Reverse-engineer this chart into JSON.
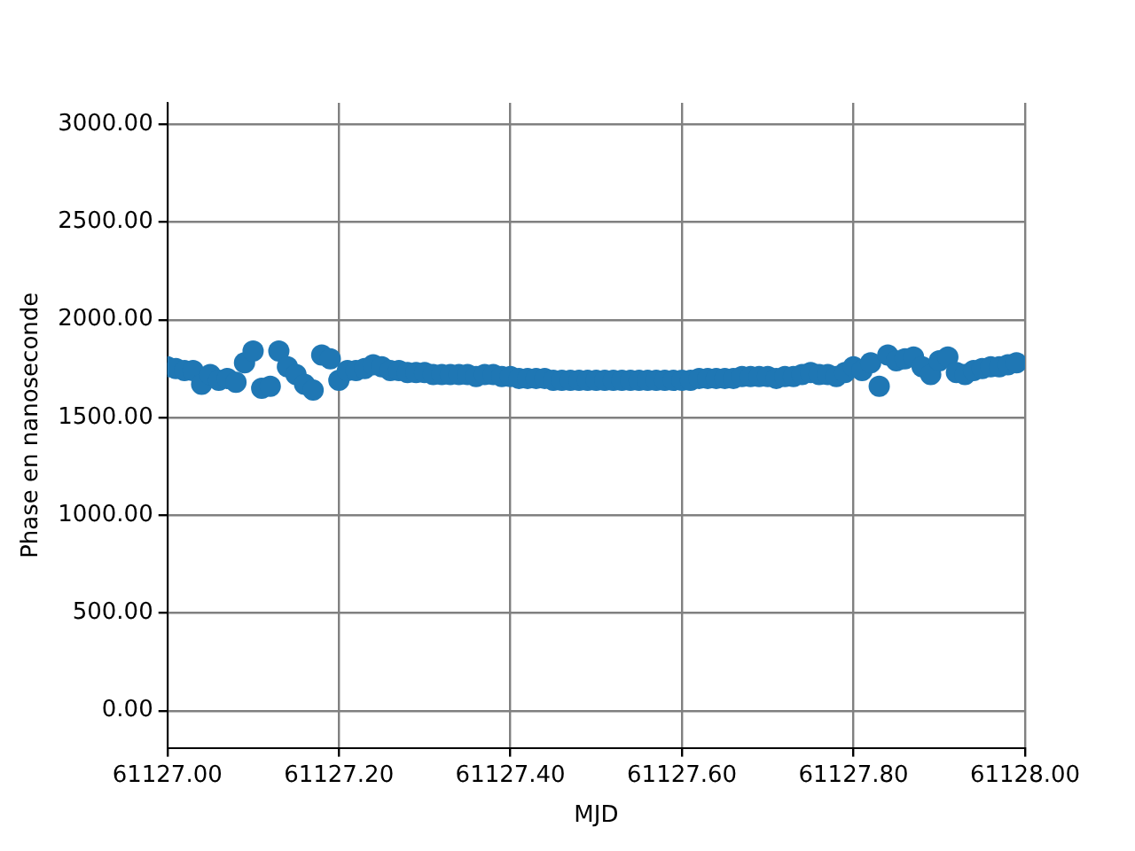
{
  "chart_data": {
    "type": "scatter",
    "xlabel": "MJD",
    "ylabel": "Phase en nanoseconde",
    "marker": "circle",
    "grid": true,
    "xlim": [
      61127.0,
      61128.0
    ],
    "xticks": [
      {
        "value": 61127.0,
        "label": "61127.00"
      },
      {
        "value": 61127.2,
        "label": "61127.20"
      },
      {
        "value": 61127.4,
        "label": "61127.40"
      },
      {
        "value": 61127.6,
        "label": "61127.60"
      },
      {
        "value": 61127.8,
        "label": "61127.80"
      },
      {
        "value": 61128.0,
        "label": "61128.00"
      }
    ],
    "ylim": [
      -190,
      3110
    ],
    "yticks": [
      {
        "value": 0,
        "label": "0.00"
      },
      {
        "value": 500,
        "label": "500.00"
      },
      {
        "value": 1000,
        "label": "1000.00"
      },
      {
        "value": 1500,
        "label": "1500.00"
      },
      {
        "value": 2000,
        "label": "2000.00"
      },
      {
        "value": 2500,
        "label": "2500.00"
      },
      {
        "value": 3000,
        "label": "3000.00"
      }
    ],
    "series": [
      {
        "color": "#1f77b4",
        "x": [
          61127.0,
          61127.01,
          61127.02,
          61127.03,
          61127.04,
          61127.05,
          61127.06,
          61127.07,
          61127.08,
          61127.09,
          61127.1,
          61127.11,
          61127.12,
          61127.13,
          61127.14,
          61127.15,
          61127.16,
          61127.17,
          61127.18,
          61127.19,
          61127.2,
          61127.21,
          61127.22,
          61127.23,
          61127.24,
          61127.25,
          61127.26,
          61127.27,
          61127.28,
          61127.29,
          61127.3,
          61127.31,
          61127.32,
          61127.33,
          61127.34,
          61127.35,
          61127.36,
          61127.37,
          61127.38,
          61127.39,
          61127.4,
          61127.41,
          61127.42,
          61127.43,
          61127.44,
          61127.45,
          61127.46,
          61127.47,
          61127.48,
          61127.49,
          61127.5,
          61127.51,
          61127.52,
          61127.53,
          61127.54,
          61127.55,
          61127.56,
          61127.57,
          61127.58,
          61127.59,
          61127.6,
          61127.61,
          61127.62,
          61127.63,
          61127.64,
          61127.65,
          61127.66,
          61127.67,
          61127.68,
          61127.69,
          61127.7,
          61127.71,
          61127.72,
          61127.73,
          61127.74,
          61127.75,
          61127.76,
          61127.77,
          61127.78,
          61127.79,
          61127.8,
          61127.81,
          61127.82,
          61127.83,
          61127.84,
          61127.85,
          61127.86,
          61127.87,
          61127.88,
          61127.89,
          61127.9,
          61127.91,
          61127.92,
          61127.93,
          61127.94,
          61127.95,
          61127.96,
          61127.97,
          61127.98,
          61127.99
        ],
        "values": [
          1760,
          1750,
          1740,
          1740,
          1670,
          1720,
          1690,
          1700,
          1680,
          1780,
          1840,
          1650,
          1660,
          1840,
          1760,
          1720,
          1670,
          1640,
          1820,
          1800,
          1690,
          1740,
          1740,
          1750,
          1770,
          1760,
          1740,
          1740,
          1730,
          1730,
          1730,
          1720,
          1720,
          1720,
          1720,
          1720,
          1710,
          1720,
          1720,
          1710,
          1710,
          1700,
          1700,
          1700,
          1700,
          1690,
          1690,
          1690,
          1690,
          1690,
          1690,
          1690,
          1690,
          1690,
          1690,
          1690,
          1690,
          1690,
          1690,
          1690,
          1690,
          1690,
          1700,
          1700,
          1700,
          1700,
          1700,
          1710,
          1710,
          1710,
          1710,
          1700,
          1710,
          1710,
          1720,
          1730,
          1720,
          1720,
          1710,
          1730,
          1760,
          1740,
          1780,
          1660,
          1820,
          1790,
          1800,
          1810,
          1760,
          1720,
          1790,
          1810,
          1730,
          1720,
          1740,
          1750,
          1760,
          1760,
          1770,
          1780
        ]
      }
    ]
  }
}
